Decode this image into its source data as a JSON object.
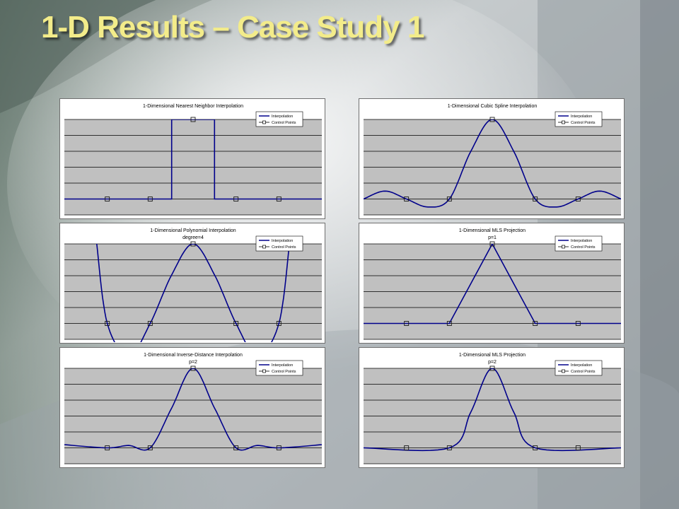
{
  "slide": {
    "title": "1-D Results – Case Study 1"
  },
  "theme": {
    "title_color": "#f3ec8a",
    "plot_area_color": "#c0c0c0",
    "series_color": "#00008b",
    "gridline_color": "#000000"
  },
  "legend": {
    "interpolation": "Interpolation",
    "control_points": "Control Points"
  },
  "chart_data": [
    {
      "type": "line",
      "title": "1-Dimensional Nearest Neighbor Interpolation",
      "subtitle": "",
      "method": "nearest",
      "ylim": [
        -0.2,
        1.0
      ],
      "grid": true,
      "legend_position": "top-right",
      "control_points": {
        "x": [
          -2,
          -1,
          0,
          1,
          2
        ],
        "y": [
          0,
          0,
          1,
          0,
          0
        ]
      },
      "series": [
        {
          "name": "Interpolation",
          "x": [
            -4,
            -0.5,
            -0.5,
            0.5,
            0.5,
            6
          ],
          "y": [
            0,
            0,
            1,
            1,
            0,
            0
          ]
        },
        {
          "name": "Control Points",
          "x": [
            -2,
            -1,
            0,
            1,
            2
          ],
          "y": [
            0,
            0,
            1,
            0,
            0
          ]
        }
      ]
    },
    {
      "type": "line",
      "title": "1-Dimensional Cubic Spline Interpolation",
      "subtitle": "",
      "method": "spline",
      "ylim": [
        -0.2,
        1.0
      ],
      "grid": true,
      "legend_position": "top-right",
      "control_points": {
        "x": [
          -2,
          -1,
          0,
          1,
          2
        ],
        "y": [
          0,
          0,
          1,
          0,
          0
        ]
      },
      "series": [
        {
          "name": "Interpolation",
          "x": [
            -3,
            -2.5,
            -2,
            -1.5,
            -1,
            -0.5,
            0,
            0.5,
            1,
            1.5,
            2,
            2.5,
            3
          ],
          "y": [
            0,
            0.1,
            0,
            -0.1,
            0,
            0.6,
            1,
            0.6,
            0,
            -0.1,
            0,
            0.1,
            0
          ]
        },
        {
          "name": "Control Points",
          "x": [
            -2,
            -1,
            0,
            1,
            2
          ],
          "y": [
            0,
            0,
            1,
            0,
            0
          ]
        }
      ]
    },
    {
      "type": "line",
      "title": "1-Dimensional Polynomial Interpolation",
      "subtitle": "degree=4",
      "method": "poly",
      "ylim": [
        -0.2,
        1.0
      ],
      "grid": true,
      "legend_position": "top-right",
      "control_points": {
        "x": [
          -2,
          -1,
          0,
          1,
          2
        ],
        "y": [
          0,
          0,
          1,
          0,
          0
        ]
      },
      "series": [
        {
          "name": "Interpolation",
          "x": [
            -2.25,
            -2,
            -1.5,
            -1,
            -0.5,
            0,
            0.5,
            1,
            1.5,
            2,
            2.25
          ],
          "y": [
            1.02,
            0,
            -0.41,
            0,
            0.61,
            1,
            0.61,
            0,
            -0.41,
            0,
            1.02
          ]
        },
        {
          "name": "Control Points",
          "x": [
            -2,
            -1,
            0,
            1,
            2
          ],
          "y": [
            0,
            0,
            1,
            0,
            0
          ]
        }
      ]
    },
    {
      "type": "line",
      "title": "1-Dimensional MLS Projection",
      "subtitle": "p=1",
      "method": "linear",
      "ylim": [
        -0.2,
        1.0
      ],
      "grid": true,
      "legend_position": "top-right",
      "control_points": {
        "x": [
          -2,
          -1,
          0,
          1,
          2
        ],
        "y": [
          0,
          0,
          1,
          0,
          0
        ]
      },
      "series": [
        {
          "name": "Interpolation",
          "x": [
            -3,
            -1,
            0,
            1,
            3
          ],
          "y": [
            0,
            0,
            1,
            0,
            0
          ]
        },
        {
          "name": "Control Points",
          "x": [
            -2,
            -1,
            0,
            1,
            2
          ],
          "y": [
            0,
            0,
            1,
            0,
            0
          ]
        }
      ]
    },
    {
      "type": "line",
      "title": "1-Dimensional Inverse-Distance Interpolation",
      "subtitle": "p=2",
      "method": "idw",
      "ylim": [
        -0.2,
        1.0
      ],
      "grid": true,
      "legend_position": "top-right",
      "control_points": {
        "x": [
          -2,
          -1,
          0,
          1,
          2
        ],
        "y": [
          0,
          0,
          1,
          0,
          0
        ]
      },
      "series": [
        {
          "name": "Interpolation",
          "x": [
            -3,
            -2,
            -1.5,
            -1,
            -0.5,
            0,
            0.5,
            1,
            1.5,
            2,
            3
          ],
          "y": [
            0.04,
            0,
            0.03,
            0,
            0.5,
            1,
            0.5,
            0,
            0.03,
            0,
            0.04
          ]
        },
        {
          "name": "Control Points",
          "x": [
            -2,
            -1,
            0,
            1,
            2
          ],
          "y": [
            0,
            0,
            1,
            0,
            0
          ]
        }
      ]
    },
    {
      "type": "line",
      "title": "1-Dimensional MLS Projection",
      "subtitle": "p=2",
      "method": "smooth",
      "ylim": [
        -0.2,
        1.0
      ],
      "grid": true,
      "legend_position": "top-right",
      "control_points": {
        "x": [
          -2,
          -1,
          0,
          1,
          2
        ],
        "y": [
          0,
          0,
          1,
          0,
          0
        ]
      },
      "series": [
        {
          "name": "Interpolation",
          "x": [
            -3,
            -1,
            -0.5,
            0,
            0.5,
            1,
            3
          ],
          "y": [
            0,
            0,
            0.45,
            1,
            0.45,
            0,
            0
          ]
        },
        {
          "name": "Control Points",
          "x": [
            -2,
            -1,
            0,
            1,
            2
          ],
          "y": [
            0,
            0,
            1,
            0,
            0
          ]
        }
      ]
    }
  ]
}
